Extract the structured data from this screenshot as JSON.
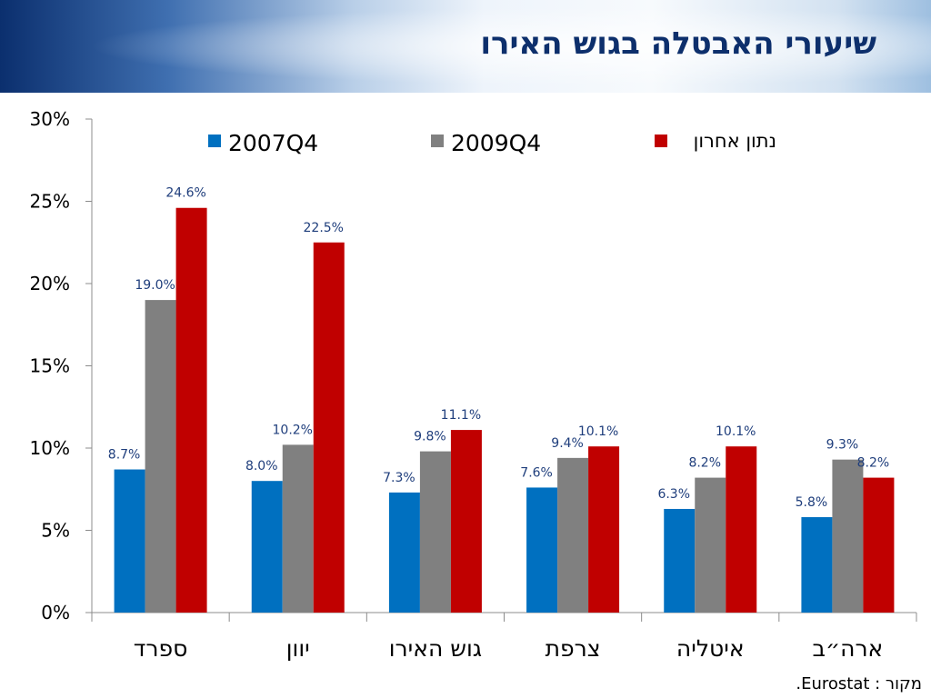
{
  "page": {
    "title": "שיעורי האבטלה בגוש האירו",
    "source": "מקור : Eurostat."
  },
  "chart_data": {
    "type": "bar",
    "title": "שיעורי האבטלה בגוש האירו",
    "categories": [
      "ספרד",
      "יוון",
      "גוש האירו",
      "צרפת",
      "איטליה",
      "ארה״ב"
    ],
    "series": [
      {
        "name": "2007Q4",
        "color": "#0070c0",
        "values": [
          8.7,
          8.0,
          7.3,
          7.6,
          6.3,
          5.8
        ],
        "labels": [
          "8.7%",
          "8.0%",
          "7.3%",
          "7.6%",
          "6.3%",
          "5.8%"
        ]
      },
      {
        "name": "2009Q4",
        "color": "#808080",
        "values": [
          19.0,
          10.2,
          9.8,
          9.4,
          8.2,
          9.3
        ],
        "labels": [
          "19.0%",
          "10.2%",
          "9.8%",
          "9.4%",
          "8.2%",
          "9.3%"
        ]
      },
      {
        "name": "נתון אחרון",
        "color": "#c00000",
        "values": [
          24.6,
          22.5,
          11.1,
          10.1,
          10.1,
          8.2
        ],
        "labels": [
          "24.6%",
          "22.5%",
          "11.1%",
          "10.1%",
          "10.1%",
          "8.2%"
        ]
      }
    ],
    "ylim": [
      0,
      30
    ],
    "yticks": [
      0,
      5,
      10,
      15,
      20,
      25,
      30
    ],
    "ytick_labels": [
      "0%",
      "5%",
      "10%",
      "15%",
      "20%",
      "25%",
      "30%"
    ],
    "grid": false,
    "legend": "top"
  }
}
